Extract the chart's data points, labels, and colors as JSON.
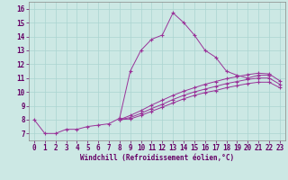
{
  "xlabel": "Windchill (Refroidissement éolien,°C)",
  "background_color": "#cce8e4",
  "line_color": "#993399",
  "grid_color": "#aad4d0",
  "xlim": [
    -0.5,
    23.5
  ],
  "ylim": [
    6.5,
    16.5
  ],
  "xticks": [
    0,
    1,
    2,
    3,
    4,
    5,
    6,
    7,
    8,
    9,
    10,
    11,
    12,
    13,
    14,
    15,
    16,
    17,
    18,
    19,
    20,
    21,
    22,
    23
  ],
  "yticks": [
    7,
    8,
    9,
    10,
    11,
    12,
    13,
    14,
    15,
    16
  ],
  "series": [
    {
      "x": [
        0,
        1,
        2,
        3,
        4,
        5,
        6,
        7,
        8,
        9,
        10,
        11,
        12,
        13,
        14,
        15,
        16,
        17,
        18,
        19,
        20,
        21,
        22
      ],
      "y": [
        8.0,
        7.0,
        7.0,
        7.3,
        7.3,
        7.5,
        7.6,
        7.7,
        8.1,
        11.5,
        13.0,
        13.8,
        14.1,
        15.7,
        15.0,
        14.1,
        13.0,
        12.5,
        11.5,
        11.2,
        11.0,
        11.2,
        11.2
      ]
    },
    {
      "x": [
        8,
        9,
        10,
        11,
        12,
        13,
        14,
        15,
        16,
        17,
        18,
        19,
        20,
        21,
        22,
        23
      ],
      "y": [
        8.0,
        8.3,
        8.65,
        9.05,
        9.4,
        9.75,
        10.05,
        10.3,
        10.55,
        10.75,
        10.95,
        11.1,
        11.25,
        11.35,
        11.3,
        10.8
      ]
    },
    {
      "x": [
        8,
        9,
        10,
        11,
        12,
        13,
        14,
        15,
        16,
        17,
        18,
        19,
        20,
        21,
        22,
        23
      ],
      "y": [
        8.0,
        8.15,
        8.45,
        8.8,
        9.1,
        9.45,
        9.75,
        10.0,
        10.2,
        10.4,
        10.6,
        10.75,
        10.9,
        11.0,
        11.0,
        10.55
      ]
    },
    {
      "x": [
        8,
        9,
        10,
        11,
        12,
        13,
        14,
        15,
        16,
        17,
        18,
        19,
        20,
        21,
        22,
        23
      ],
      "y": [
        8.0,
        8.05,
        8.3,
        8.6,
        8.9,
        9.2,
        9.5,
        9.75,
        9.95,
        10.1,
        10.3,
        10.45,
        10.6,
        10.7,
        10.7,
        10.3
      ]
    }
  ]
}
